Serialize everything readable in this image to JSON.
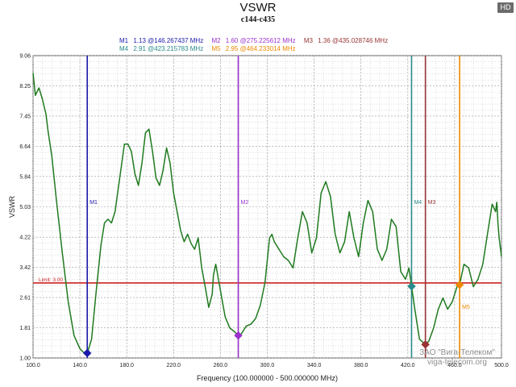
{
  "badge": "HD",
  "chart_data": {
    "type": "line",
    "title": "VSWR",
    "subtitle": "c144-c435",
    "xlabel": "Frequency (100.000000 - 500.000000 MHz)",
    "ylabel": "VSWR",
    "xlim": [
      100,
      500
    ],
    "ylim": [
      1.0,
      9.06
    ],
    "xticks": [
      100,
      140,
      180,
      220,
      260,
      300,
      340,
      380,
      420,
      460,
      500
    ],
    "xtick_labels": [
      "100.0",
      "140.0",
      "180.0",
      "220.0",
      "260.0",
      "300.0",
      "340.0",
      "380.0",
      "420.0",
      "460.0",
      "500.0"
    ],
    "yticks": [
      1.0,
      1.81,
      2.61,
      3.42,
      4.22,
      5.03,
      5.84,
      6.64,
      7.45,
      8.25,
      9.06
    ],
    "ytick_labels": [
      "1.00",
      "1.81",
      "2.61",
      "3.42",
      "4.22",
      "5.03",
      "5.84",
      "6.64",
      "7.45",
      "8.25",
      "9.06"
    ],
    "grid": true,
    "limit": {
      "value": 3.0,
      "label": "Limit: 3.00",
      "color": "#cc2222"
    },
    "series": [
      {
        "color": "#1f7a1f",
        "x": [
          100,
          102,
          105,
          108,
          111,
          113,
          116,
          120,
          125,
          130,
          135,
          140,
          143,
          146.3,
          150,
          154,
          158,
          161,
          164,
          167,
          170,
          174,
          178,
          181,
          184,
          187,
          190,
          193,
          196,
          199,
          202,
          205,
          208,
          211,
          214,
          217,
          220,
          223,
          226,
          229,
          232,
          235,
          238,
          241,
          244,
          247,
          250,
          253,
          254,
          256,
          260,
          264,
          268,
          272,
          275.2,
          278,
          282,
          286,
          290,
          294,
          298,
          300,
          302,
          304,
          306,
          310,
          314,
          318,
          322,
          326,
          330,
          334,
          338,
          342,
          346,
          350,
          354,
          358,
          362,
          366,
          370,
          374,
          378,
          382,
          386,
          390,
          394,
          398,
          402,
          406,
          410,
          414,
          418,
          421,
          423.2,
          426,
          430,
          435,
          438,
          442,
          446,
          450,
          454,
          458,
          462,
          464.2,
          468,
          472,
          476,
          480,
          484,
          488,
          492,
          495,
          496,
          497,
          498,
          500
        ],
        "y": [
          8.6,
          8.0,
          8.2,
          7.9,
          7.5,
          7.0,
          6.4,
          5.2,
          3.8,
          2.5,
          1.6,
          1.25,
          1.15,
          1.13,
          1.5,
          2.8,
          4.0,
          4.6,
          4.7,
          4.6,
          4.9,
          5.8,
          6.7,
          6.7,
          6.5,
          5.9,
          5.6,
          6.2,
          7.0,
          7.1,
          6.5,
          5.8,
          5.6,
          6.0,
          6.6,
          6.2,
          5.4,
          4.9,
          4.4,
          4.1,
          4.3,
          4.05,
          3.9,
          4.2,
          3.4,
          2.9,
          2.35,
          2.7,
          3.2,
          3.5,
          2.8,
          2.1,
          1.8,
          1.7,
          1.6,
          1.65,
          1.85,
          1.9,
          2.05,
          2.4,
          3.0,
          3.6,
          4.2,
          4.3,
          4.1,
          3.9,
          3.7,
          3.6,
          3.4,
          4.2,
          4.9,
          4.6,
          3.8,
          4.2,
          5.4,
          5.7,
          5.3,
          4.3,
          3.8,
          4.1,
          4.9,
          4.2,
          3.7,
          4.6,
          5.2,
          4.9,
          3.9,
          3.6,
          3.9,
          4.7,
          4.5,
          3.3,
          3.1,
          3.4,
          2.91,
          2.3,
          1.5,
          1.36,
          1.45,
          1.8,
          2.3,
          2.6,
          2.3,
          2.5,
          2.9,
          2.95,
          3.5,
          3.4,
          2.9,
          3.1,
          3.5,
          4.3,
          5.1,
          4.9,
          5.15,
          4.6,
          4.2,
          3.7
        ]
      }
    ],
    "markers": [
      {
        "id": "M1",
        "text": "1.13 @146.267437 MHz",
        "x": 146.267437,
        "y": 1.13,
        "color": "#1a1aaa",
        "shape": "diamond"
      },
      {
        "id": "M2",
        "text": "1.60 @275.225612 MHz",
        "x": 275.225612,
        "y": 1.6,
        "color": "#9933cc",
        "shape": "diamond"
      },
      {
        "id": "M3",
        "text": "1.36 @435.028746 MHz",
        "x": 435.028746,
        "y": 1.36,
        "color": "#993333",
        "shape": "diamond"
      },
      {
        "id": "M4",
        "text": "2.91 @423.215783 MHz",
        "x": 423.215783,
        "y": 2.91,
        "color": "#2a8a8a",
        "shape": "diamond"
      },
      {
        "id": "M5",
        "text": "2.95 @464.233014 MHz",
        "x": 464.233014,
        "y": 2.95,
        "color": "#ee8800",
        "shape": "diamond"
      }
    ]
  },
  "watermark": {
    "line1": "ЗАО \"Вига-Телеком\"",
    "line2": "viga-telecom.org"
  }
}
